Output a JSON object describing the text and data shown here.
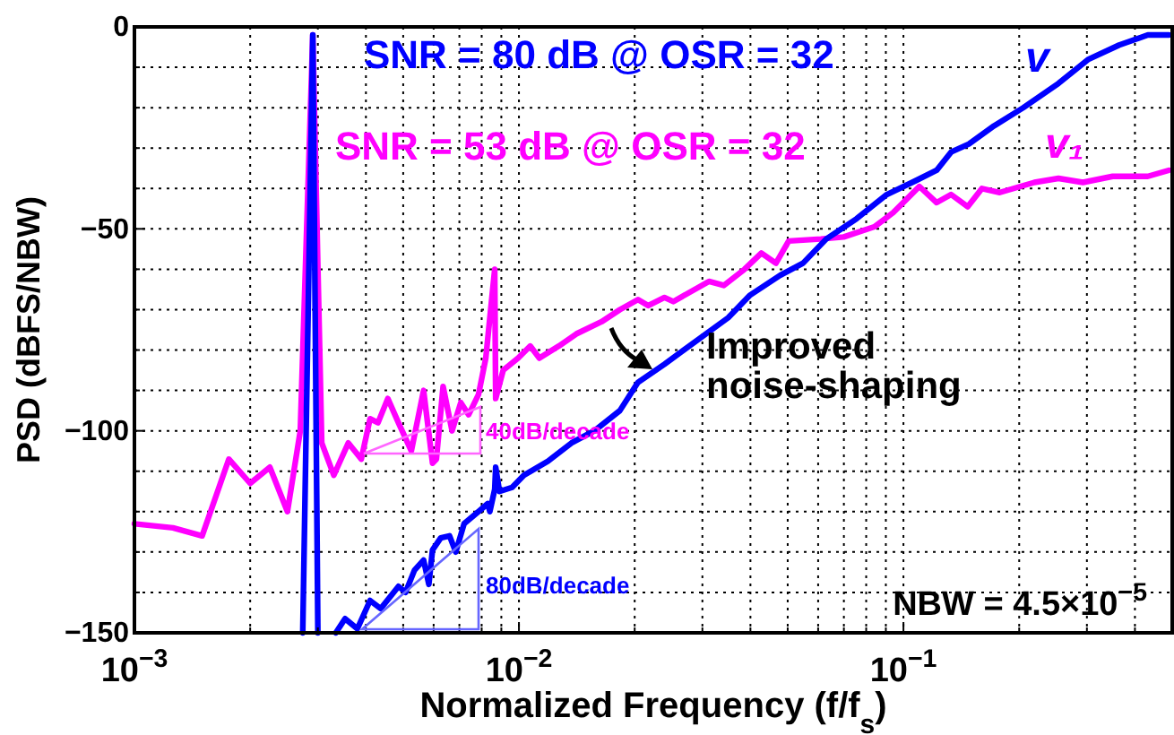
{
  "chart_data": {
    "type": "line",
    "xlabel": "Normalized Frequency (f/f$_{s}$)",
    "ylabel": "PSD (dBFS/NBW)",
    "log": "x",
    "grid": true,
    "xlim": [
      0.001,
      0.5
    ],
    "xticks": [
      {
        "value": 0.001,
        "label": "10$^{−3}$"
      },
      {
        "value": 0.002,
        "label": null
      },
      {
        "value": 0.003,
        "label": null
      },
      {
        "value": 0.004,
        "label": null
      },
      {
        "value": 0.005,
        "label": null
      },
      {
        "value": 0.006,
        "label": null
      },
      {
        "value": 0.007,
        "label": null
      },
      {
        "value": 0.008,
        "label": null
      },
      {
        "value": 0.009,
        "label": null
      },
      {
        "value": 0.01,
        "label": "10$^{−2}$"
      },
      {
        "value": 0.02,
        "label": null
      },
      {
        "value": 0.03,
        "label": null
      },
      {
        "value": 0.04,
        "label": null
      },
      {
        "value": 0.05,
        "label": null
      },
      {
        "value": 0.06,
        "label": null
      },
      {
        "value": 0.07,
        "label": null
      },
      {
        "value": 0.08,
        "label": null
      },
      {
        "value": 0.09,
        "label": null
      },
      {
        "value": 0.1,
        "label": "10$^{−1}$"
      },
      {
        "value": 0.2,
        "label": null
      },
      {
        "value": 0.3,
        "label": null
      },
      {
        "value": 0.4,
        "label": null
      }
    ],
    "ylim": [
      -150,
      0
    ],
    "yticks": [
      {
        "value": -150,
        "label": "−150"
      },
      {
        "value": -140,
        "label": null
      },
      {
        "value": -130,
        "label": null
      },
      {
        "value": -120,
        "label": null
      },
      {
        "value": -110,
        "label": null
      },
      {
        "value": -100,
        "label": "−100"
      },
      {
        "value": -90,
        "label": null
      },
      {
        "value": -80,
        "label": null
      },
      {
        "value": -70,
        "label": null
      },
      {
        "value": -60,
        "label": null
      },
      {
        "value": -50,
        "label": "−50"
      },
      {
        "value": -40,
        "label": null
      },
      {
        "value": -30,
        "label": null
      },
      {
        "value": -20,
        "label": null
      },
      {
        "value": -10,
        "label": null
      },
      {
        "value": 0,
        "label": "0"
      }
    ],
    "series": [
      {
        "name": "v₁",
        "color": "#ff00ff",
        "x": [
          0.001,
          0.00126,
          0.0015,
          0.00176,
          0.002,
          0.00225,
          0.0025,
          0.0027,
          0.00291,
          0.00307,
          0.0033,
          0.0036,
          0.00389,
          0.0041,
          0.0043,
          0.00456,
          0.00486,
          0.00525,
          0.00565,
          0.00596,
          0.0061,
          0.00635,
          0.0067,
          0.00706,
          0.0074,
          0.00785,
          0.0082,
          0.00865,
          0.0087,
          0.0091,
          0.00995,
          0.0107,
          0.0113,
          0.0127,
          0.0141,
          0.0164,
          0.0183,
          0.0204,
          0.0217,
          0.0239,
          0.0252,
          0.0312,
          0.0341,
          0.0386,
          0.0427,
          0.0466,
          0.0503,
          0.061,
          0.0699,
          0.084,
          0.094,
          0.11,
          0.122,
          0.133,
          0.147,
          0.16,
          0.178,
          0.219,
          0.253,
          0.293,
          0.35,
          0.432,
          0.49
        ],
        "values": [
          -123,
          -124,
          -126,
          -107,
          -113,
          -109,
          -120,
          -100,
          -2,
          -103,
          -111,
          -103,
          -107,
          -97,
          -98,
          -92,
          -98,
          -105,
          -90,
          -108,
          -107,
          -89,
          -100,
          -93,
          -96,
          -91,
          -82,
          -60,
          -92,
          -85,
          -82,
          -79,
          -82,
          -79,
          -76,
          -73,
          -70,
          -67.5,
          -69,
          -67,
          -68,
          -63,
          -64,
          -60,
          -56,
          -58.5,
          -53,
          -52.5,
          -52,
          -49.5,
          -46,
          -39.5,
          -43.5,
          -41.5,
          -44.5,
          -40,
          -41,
          -38.5,
          -37.5,
          -38.5,
          -37,
          -37,
          -35.5
        ]
      },
      {
        "name": "v",
        "color": "#0000ff",
        "x": [
          0.00274,
          0.00291,
          0.003,
          0.00317,
          0.00334,
          0.00353,
          0.0038,
          0.0041,
          0.00437,
          0.00486,
          0.00507,
          0.00535,
          0.00565,
          0.00583,
          0.00596,
          0.00626,
          0.0066,
          0.00685,
          0.0072,
          0.00785,
          0.0083,
          0.0084,
          0.00865,
          0.0087,
          0.0089,
          0.0096,
          0.0103,
          0.0119,
          0.0137,
          0.0157,
          0.0183,
          0.0204,
          0.0239,
          0.035,
          0.0398,
          0.0478,
          0.0548,
          0.063,
          0.0755,
          0.0905,
          0.108,
          0.122,
          0.133,
          0.148,
          0.172,
          0.205,
          0.253,
          0.303,
          0.364,
          0.432,
          0.49
        ],
        "values": [
          -150,
          -2,
          -150,
          null,
          -150,
          -146.5,
          -149,
          -142,
          -144,
          -138.5,
          -140,
          -134.5,
          -132,
          -138,
          -129.5,
          -126.5,
          -126,
          -130,
          -123,
          -120,
          -118,
          -120,
          -114.5,
          -109,
          -115,
          -114,
          -111,
          -107.5,
          -103,
          -100,
          -95,
          -88,
          -83.5,
          -72,
          -66.5,
          -61.5,
          -58.5,
          -52.5,
          -47.5,
          -41.5,
          -38,
          -35.5,
          -31,
          -29,
          -24.5,
          -20,
          -14,
          -8,
          -4.5,
          -2,
          -2
        ]
      }
    ],
    "annotations": [
      "SNR = 80 dB @ OSR = 32",
      "SNR = 53 dB @ OSR = 32",
      "Improved noise-shaping",
      "40dB/decade",
      "80dB/decade",
      "NBW = 4.5×10$^{−5}$"
    ]
  }
}
